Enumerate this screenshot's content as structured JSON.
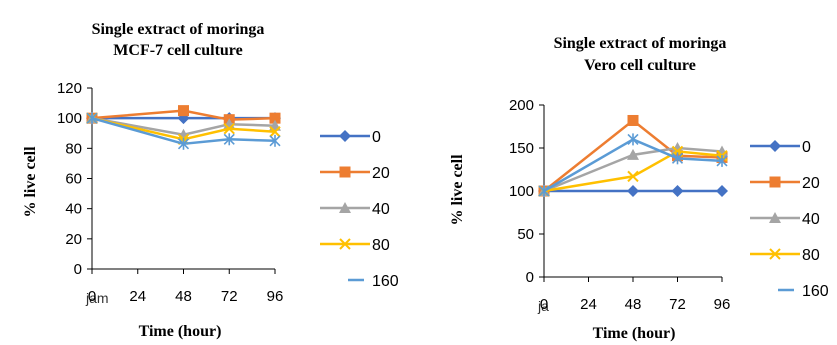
{
  "chart_data": [
    {
      "type": "line",
      "title_lines": [
        "Single extract of moringa",
        "MCF-7 cell culture"
      ],
      "xlabel": "Time (hour)",
      "ylabel": "% live cell",
      "x_categories": [
        "0",
        "24",
        "48",
        "72",
        "96"
      ],
      "x_extra_label": "jam",
      "ylim": [
        0,
        120
      ],
      "yticks": [
        0,
        20,
        40,
        60,
        80,
        100,
        120
      ],
      "grid": false,
      "legend_position": "right",
      "series": [
        {
          "name": "0",
          "color": "#4472C4",
          "marker": "diamond",
          "points": [
            [
              0,
              100
            ],
            [
              48,
              100
            ],
            [
              72,
              100
            ],
            [
              96,
              100
            ]
          ]
        },
        {
          "name": "20",
          "color": "#ED7D31",
          "marker": "square",
          "points": [
            [
              0,
              100
            ],
            [
              48,
              105
            ],
            [
              72,
              99
            ],
            [
              96,
              100
            ]
          ]
        },
        {
          "name": "40",
          "color": "#A5A5A5",
          "marker": "triangle",
          "points": [
            [
              0,
              100
            ],
            [
              48,
              89
            ],
            [
              72,
              96
            ],
            [
              96,
              95
            ]
          ]
        },
        {
          "name": "80",
          "color": "#FFC000",
          "marker": "x",
          "points": [
            [
              0,
              100
            ],
            [
              48,
              86
            ],
            [
              72,
              93
            ],
            [
              96,
              91
            ]
          ]
        },
        {
          "name": "160",
          "color": "#5B9BD5",
          "marker": "star",
          "points": [
            [
              0,
              100
            ],
            [
              48,
              83
            ],
            [
              72,
              86
            ],
            [
              96,
              85
            ]
          ]
        }
      ]
    },
    {
      "type": "line",
      "title_lines": [
        "Single extract of moringa",
        "Vero cell culture"
      ],
      "xlabel": "Time (hour)",
      "ylabel": "% live cell",
      "x_categories": [
        "0",
        "24",
        "48",
        "72",
        "96"
      ],
      "x_extra_label": "ja",
      "ylim": [
        0,
        200
      ],
      "yticks": [
        0,
        50,
        100,
        150,
        200
      ],
      "grid": false,
      "legend_position": "right",
      "series": [
        {
          "name": "0",
          "color": "#4472C4",
          "marker": "diamond",
          "points": [
            [
              0,
              100
            ],
            [
              48,
              100
            ],
            [
              72,
              100
            ],
            [
              96,
              100
            ]
          ]
        },
        {
          "name": "20",
          "color": "#ED7D31",
          "marker": "square",
          "points": [
            [
              0,
              100
            ],
            [
              48,
              182
            ],
            [
              72,
              141
            ],
            [
              96,
              139
            ]
          ]
        },
        {
          "name": "40",
          "color": "#A5A5A5",
          "marker": "triangle",
          "points": [
            [
              0,
              100
            ],
            [
              48,
              142
            ],
            [
              72,
              150
            ],
            [
              96,
              146
            ]
          ]
        },
        {
          "name": "80",
          "color": "#FFC000",
          "marker": "x",
          "points": [
            [
              0,
              100
            ],
            [
              48,
              117
            ],
            [
              72,
              146
            ],
            [
              96,
              141
            ]
          ]
        },
        {
          "name": "160",
          "color": "#5B9BD5",
          "marker": "star",
          "points": [
            [
              0,
              100
            ],
            [
              48,
              160
            ],
            [
              72,
              138
            ],
            [
              96,
              135
            ]
          ]
        }
      ]
    }
  ]
}
